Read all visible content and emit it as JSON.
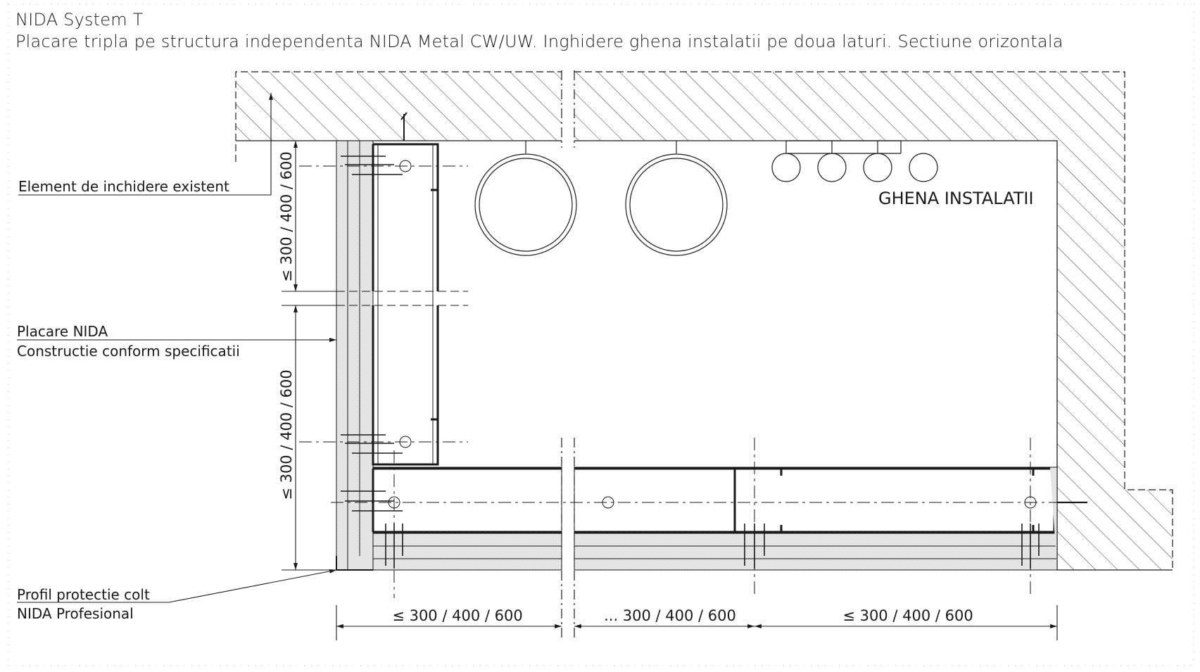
{
  "drawing": {
    "title": "NIDA System T",
    "subtitle": "Placare tripla pe structura independenta NIDA Metal CW/UW. Inghidere ghena instalatii pe doua laturi. Sectiune orizontala"
  },
  "labels": {
    "existing_element": "Element de inchidere existent",
    "cladding_line1": "Placare NIDA",
    "cladding_line2": "Constructie conform specificatii",
    "corner_line1": "Profil protectie colt",
    "corner_line2": "NIDA Profesional",
    "shaft": "GHENA INSTALATII"
  },
  "dimensions": {
    "vertical_upper": "≤ 300 / 400 / 600",
    "vertical_lower": "≤ 300 / 400 / 600",
    "horizontal_left": "≤ 300 / 400 / 600",
    "horizontal_middle": "... 300 / 400 / 600",
    "horizontal_right": "≤ 300 / 400 / 600"
  },
  "colors": {
    "line": "#1a1a1a",
    "hatch": "#3a3a3a",
    "board": "#e9e9e9",
    "frame_dots": "#bdbdbd"
  }
}
